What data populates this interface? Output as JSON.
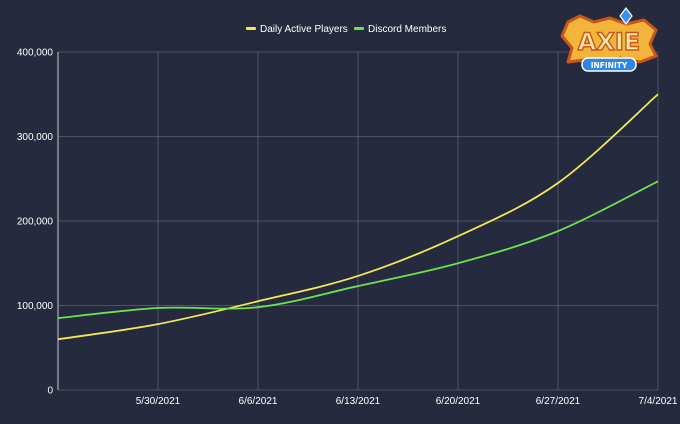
{
  "chart_data": {
    "type": "line",
    "title": "",
    "xlabel": "",
    "ylabel": "",
    "x": [
      "2021-05-23",
      "2021-05-30",
      "2021-06-06",
      "2021-06-13",
      "2021-06-20",
      "2021-06-27",
      "2021-07-04"
    ],
    "x_tick_labels": [
      "5/30/2021",
      "6/6/2021",
      "6/13/2021",
      "6/20/2021",
      "6/27/2021",
      "7/4/2021"
    ],
    "y_tick_labels": [
      "0",
      "100,000",
      "200,000",
      "300,000",
      "400,000"
    ],
    "ylim": [
      0,
      400000
    ],
    "grid": true,
    "legend_position": "top",
    "series": [
      {
        "name": "Daily Active Players",
        "color": "#f2e85a",
        "values": [
          60000,
          78000,
          105000,
          135000,
          182000,
          245000,
          350000
        ]
      },
      {
        "name": "Discord Members",
        "color": "#6de14f",
        "values": [
          85000,
          97000,
          98000,
          123000,
          150000,
          188000,
          247000
        ]
      }
    ],
    "background": "#252a3e",
    "grid_color": "#5a5f73"
  },
  "logo": {
    "text": "AXIE",
    "subtext": "INFINITY",
    "icon": "axie-infinity-logo"
  }
}
